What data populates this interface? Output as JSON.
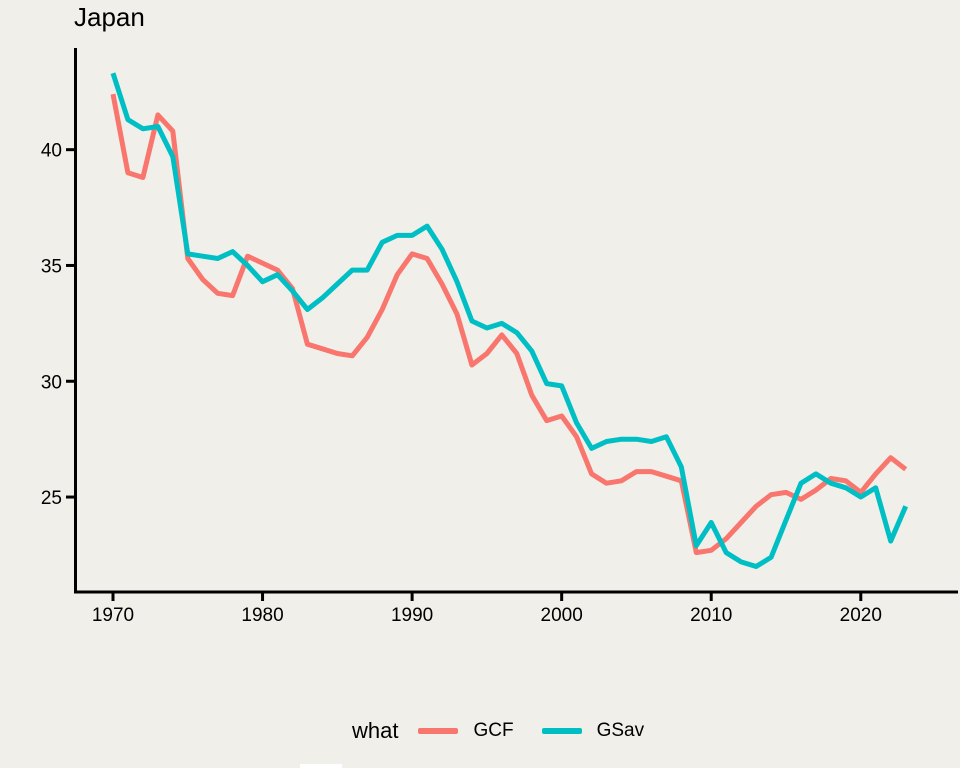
{
  "chart": {
    "title": "Japan",
    "legend": {
      "title": "what",
      "entries": [
        {
          "label": "GCF",
          "color": "#f8766d"
        },
        {
          "label": "GSav",
          "color": "#00bfc4"
        }
      ]
    }
  },
  "chart_data": {
    "type": "line",
    "title": "Japan",
    "xlabel": "",
    "ylabel": "",
    "grid": false,
    "legend_position": "bottom",
    "legend_title": "what",
    "xlim": [
      1967.46,
      2026.5
    ],
    "ylim": [
      20.9,
      44.39
    ],
    "xticks": [
      1970,
      1980,
      1990,
      2000,
      2010,
      2020
    ],
    "yticks": [
      25,
      30,
      35,
      40
    ],
    "x": [
      1970,
      1971,
      1972,
      1973,
      1974,
      1975,
      1976,
      1977,
      1978,
      1979,
      1980,
      1981,
      1982,
      1983,
      1984,
      1985,
      1986,
      1987,
      1988,
      1989,
      1990,
      1991,
      1992,
      1993,
      1994,
      1995,
      1996,
      1997,
      1998,
      1999,
      2000,
      2001,
      2002,
      2003,
      2004,
      2005,
      2006,
      2007,
      2008,
      2009,
      2010,
      2011,
      2012,
      2013,
      2014,
      2015,
      2016,
      2017,
      2018,
      2019,
      2020,
      2021,
      2022,
      2023
    ],
    "series": [
      {
        "name": "GCF",
        "color": "#f8766d",
        "values": [
          42.4,
          39.0,
          38.8,
          41.5,
          40.8,
          35.3,
          34.4,
          33.8,
          33.7,
          35.4,
          35.1,
          34.8,
          34.0,
          31.6,
          31.4,
          31.2,
          31.1,
          31.9,
          33.1,
          34.6,
          35.5,
          35.3,
          34.2,
          32.9,
          30.7,
          31.2,
          32.0,
          31.2,
          29.4,
          28.3,
          28.5,
          27.6,
          26.0,
          25.6,
          25.7,
          26.1,
          26.1,
          25.9,
          25.7,
          22.6,
          22.7,
          23.2,
          23.9,
          24.6,
          25.1,
          25.2,
          24.9,
          25.3,
          25.8,
          25.7,
          25.2,
          26.0,
          26.7,
          26.2
        ]
      },
      {
        "name": "GSav",
        "color": "#00bfc4",
        "values": [
          43.3,
          41.3,
          40.9,
          41.0,
          39.7,
          35.5,
          35.4,
          35.3,
          35.6,
          35.0,
          34.3,
          34.6,
          33.9,
          33.1,
          33.6,
          34.2,
          34.8,
          34.8,
          36.0,
          36.3,
          36.3,
          36.7,
          35.7,
          34.3,
          32.6,
          32.3,
          32.5,
          32.1,
          31.3,
          29.9,
          29.8,
          28.2,
          27.1,
          27.4,
          27.5,
          27.5,
          27.4,
          27.6,
          26.3,
          22.9,
          23.9,
          22.6,
          22.2,
          22.0,
          22.4,
          24.0,
          25.6,
          26.0,
          25.6,
          25.4,
          25.0,
          25.4,
          23.1,
          24.6
        ]
      }
    ]
  }
}
